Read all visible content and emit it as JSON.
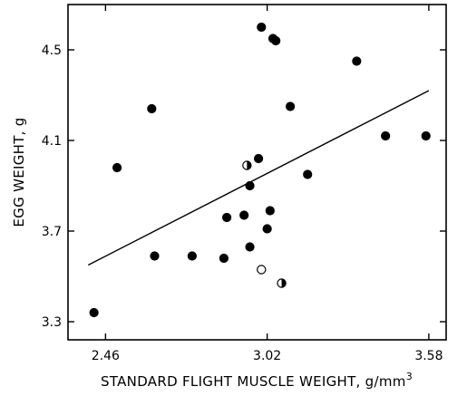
{
  "chart_data": {
    "type": "scatter",
    "title": "",
    "xlabel": "STANDARD FLIGHT MUSCLE WEIGHT, g/mm",
    "xlabel_superscript": "3",
    "ylabel": "EGG WEIGHT, g",
    "xlim": [
      2.33,
      3.64
    ],
    "ylim": [
      3.22,
      4.7
    ],
    "xticks": [
      2.46,
      3.02,
      3.58
    ],
    "xtick_labels": [
      "2.46",
      "3.02",
      "3.58"
    ],
    "yticks": [
      3.3,
      3.7,
      4.1,
      4.5
    ],
    "ytick_labels": [
      "3.3",
      "3.7",
      "4.1",
      "4.5"
    ],
    "grid": false,
    "series": [
      {
        "marker": "filled-circle",
        "x": [
          2.42,
          2.5,
          2.62,
          2.63,
          2.76,
          2.87,
          2.88,
          2.94,
          2.96,
          2.96,
          2.99,
          3.0,
          3.02,
          3.03,
          3.04,
          3.05,
          3.1,
          3.16,
          3.33,
          3.43,
          3.57
        ],
        "y": [
          3.34,
          3.98,
          4.24,
          3.59,
          3.59,
          3.58,
          3.76,
          3.77,
          3.63,
          3.9,
          4.02,
          4.6,
          3.71,
          3.79,
          4.55,
          4.54,
          4.25,
          3.95,
          4.45,
          4.12,
          4.12
        ]
      },
      {
        "marker": "half-filled-circle",
        "x": [
          2.95,
          3.07
        ],
        "y": [
          3.99,
          3.47
        ]
      },
      {
        "marker": "open-circle",
        "x": [
          3.0
        ],
        "y": [
          3.53
        ]
      }
    ],
    "regression_line": {
      "x": [
        2.4,
        3.58
      ],
      "y": [
        3.55,
        4.32
      ]
    },
    "colors": {
      "marker": "#000000",
      "line": "#000000",
      "background": "#ffffff"
    }
  }
}
